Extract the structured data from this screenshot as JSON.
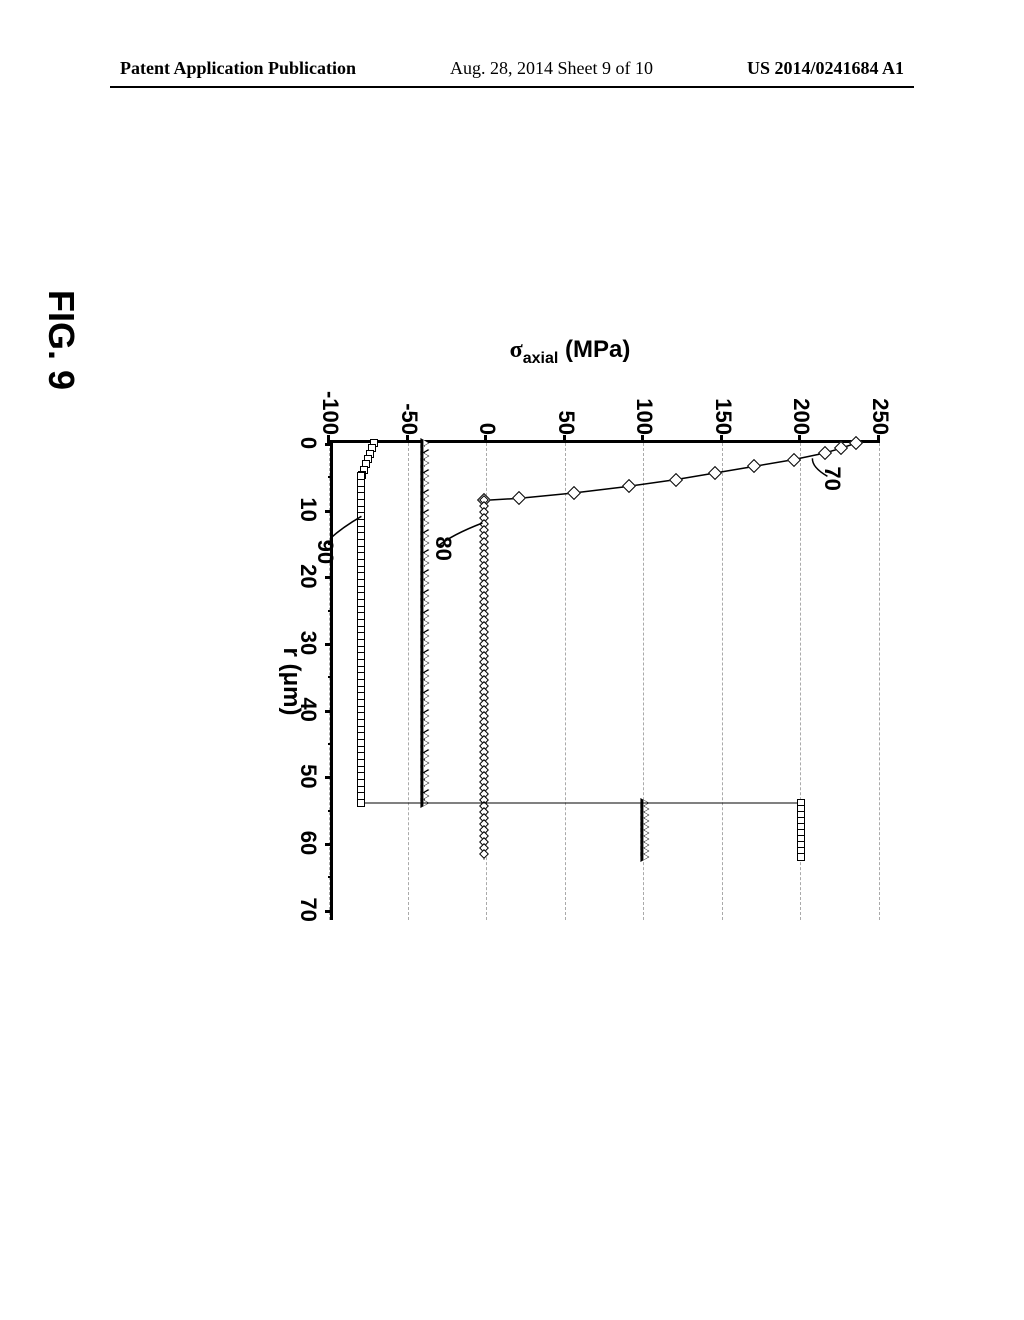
{
  "header": {
    "left": "Patent Application Publication",
    "center": "Aug. 28, 2014  Sheet 9 of 10",
    "right": "US 2014/0241684 A1"
  },
  "figure": {
    "label": "FIG. 9",
    "chart": {
      "type": "line",
      "xlabel": "r (μm)",
      "ylabel": "σaxial (MPa)",
      "xlim": [
        0,
        72
      ],
      "ylim": [
        -100,
        250
      ],
      "xtick_step": 10,
      "ytick_step": 50,
      "background_color": "#ffffff",
      "grid_color": "#aaaaaa",
      "grid_style": "dashed",
      "axis_color": "#000000",
      "axis_width": 3,
      "label_fontsize": 24,
      "tick_fontsize": 22,
      "series": [
        {
          "id": "70",
          "marker": "diamond",
          "marker_size": 10,
          "line_width": 1.5,
          "color": "#000000",
          "data": [
            {
              "x": 0,
              "y": 235
            },
            {
              "x": 0.8,
              "y": 225
            },
            {
              "x": 1.5,
              "y": 215
            },
            {
              "x": 2.5,
              "y": 195
            },
            {
              "x": 3.5,
              "y": 170
            },
            {
              "x": 4.5,
              "y": 145
            },
            {
              "x": 5.5,
              "y": 120
            },
            {
              "x": 6.5,
              "y": 90
            },
            {
              "x": 7.5,
              "y": 55
            },
            {
              "x": 8.3,
              "y": 20
            },
            {
              "x": 8.6,
              "y": -2
            }
          ],
          "annotation": {
            "text": "70",
            "at_x": 3.5,
            "at_y": 228,
            "leader_to": {
              "x": 2.3,
              "y": 207
            }
          }
        },
        {
          "id": "80",
          "marker": "diamond-small",
          "marker_size": 7,
          "line_width": 1,
          "color": "#000000",
          "flat_inner_y": -2,
          "flat_outer_y": -2,
          "step_x": 54,
          "outer_end_x": 62.5,
          "annotation": {
            "text": "80",
            "at_x": 14,
            "at_y": -20,
            "leader_to": {
              "x": 12,
              "y": -3
            }
          }
        },
        {
          "id": "90-triangle",
          "marker": "triangle",
          "marker_size": 9,
          "line_width": 1,
          "color": "#000000",
          "flat_inner_y": -40,
          "flat_outer_y": 100,
          "step_x": 54,
          "outer_end_x": 62.5
        },
        {
          "id": "90-square",
          "marker": "square",
          "marker_size": 8,
          "line_width": 1,
          "color": "#000000",
          "inner_start_y": -72,
          "inner_slope_end_x": 5,
          "flat_inner_y": -80,
          "flat_outer_y": 200,
          "step_x": 54,
          "outer_end_x": 62.5,
          "annotation": {
            "text": "90",
            "at_x": 14.5,
            "at_y": -95,
            "leader_to": {
              "x": 11,
              "y": -80
            }
          }
        }
      ]
    }
  }
}
